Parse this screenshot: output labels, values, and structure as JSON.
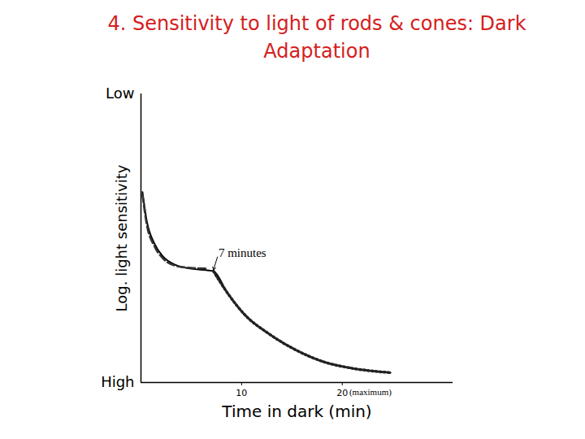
{
  "chart_data": {
    "type": "line",
    "title": "4. Sensitivity to light of rods & cones: Dark Adaptation",
    "x_label": "Time in dark (min)",
    "y_label": "Log. light sensitivity",
    "xlim": [
      0,
      31
    ],
    "xticks": [
      10,
      20
    ],
    "ylim": [
      0,
      10
    ],
    "yticks": [
      {
        "value": 10,
        "label": "Low"
      },
      {
        "value": 0,
        "label": "High"
      }
    ],
    "grid": false,
    "series": [
      {
        "color": "#000000",
        "line_style": "solid",
        "x": [
          0.15,
          0.56,
          1.37,
          2.18,
          3.39,
          5.0,
          6.6,
          7.2,
          8.6,
          10.2,
          12.7,
          15.1,
          18.3,
          20.7,
          24.8
        ],
        "values": [
          6.6,
          5.63,
          4.79,
          4.37,
          4.08,
          3.94,
          3.89,
          3.86,
          3.1,
          2.39,
          1.69,
          1.18,
          0.7,
          0.51,
          0.34
        ]
      },
      {
        "color": "#333333",
        "line_style": "dashed",
        "x": [
          0.15,
          0.56,
          1.37,
          2.18,
          3.39,
          5.0,
          6.6
        ],
        "values": [
          6.5,
          5.5,
          4.7,
          4.3,
          4.05,
          3.97,
          3.95
        ]
      },
      {
        "color": "#222222",
        "line_style": "dotted",
        "x": [
          7.2,
          8.6,
          10.2,
          12.7,
          15.1,
          18.3,
          20.7,
          24.8
        ],
        "values": [
          3.86,
          3.1,
          2.39,
          1.69,
          1.18,
          0.7,
          0.51,
          0.34
        ]
      }
    ],
    "annotations": [
      {
        "text": "7 minutes",
        "x": 7.7,
        "y": 4.5,
        "point": [
          7.2,
          3.9
        ]
      },
      {
        "text": "(maximum)",
        "x": 20.7,
        "y": -0.35
      }
    ]
  }
}
